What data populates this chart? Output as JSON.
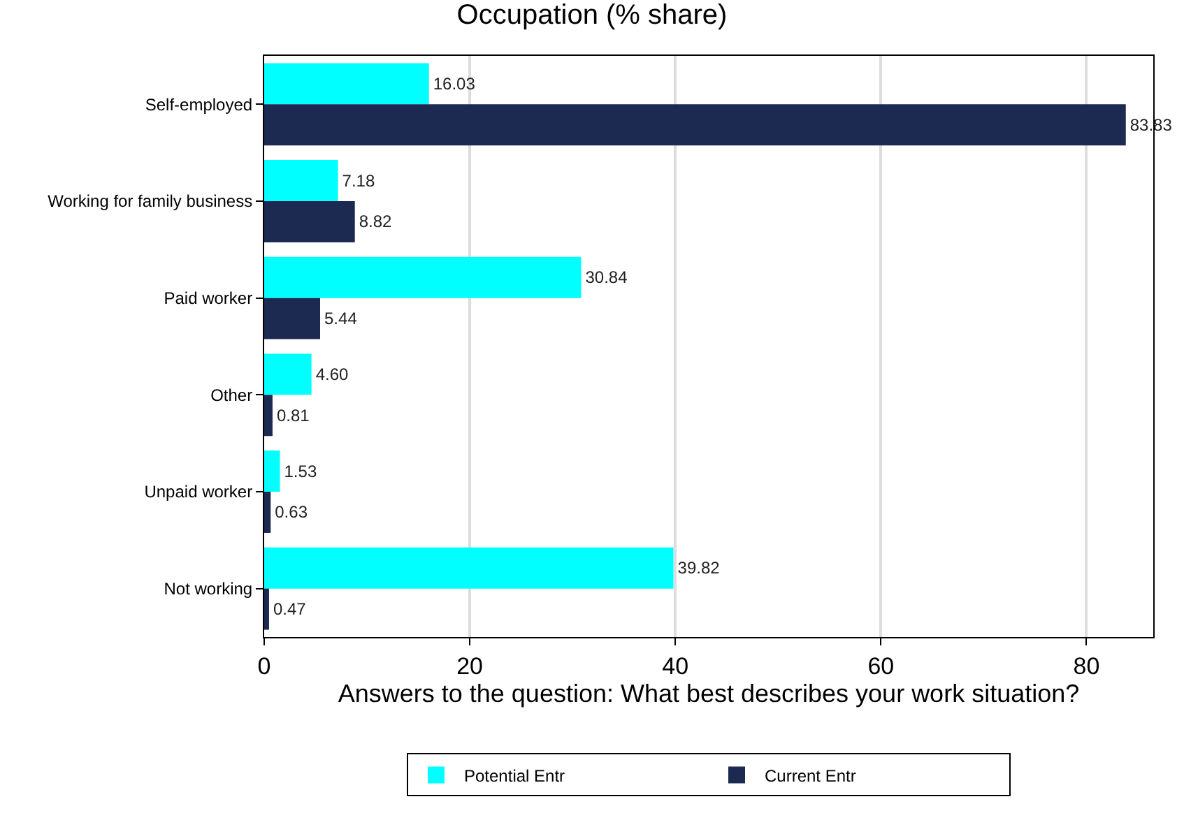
{
  "chart_data": {
    "type": "bar",
    "orientation": "horizontal",
    "title": "Occupation (% share)",
    "xlabel": "Answers to the question: What best describes your work situation?",
    "categories": [
      "Self-employed",
      "Working for family business",
      "Paid worker",
      "Other",
      "Unpaid worker",
      "Not working"
    ],
    "series": [
      {
        "name": "Potential Entr",
        "color": "#00ffff",
        "values": [
          16.03,
          7.18,
          30.84,
          4.6,
          1.53,
          39.82
        ],
        "value_labels": [
          "16.03",
          "7.18",
          "30.84",
          "4.60",
          "1.53",
          "39.82"
        ]
      },
      {
        "name": "Current Entr",
        "color": "#1c2951",
        "values": [
          83.83,
          8.82,
          5.44,
          0.81,
          0.63,
          0.47
        ],
        "value_labels": [
          "83.83",
          "8.82",
          "5.44",
          "0.81",
          "0.63",
          "0.47"
        ]
      }
    ],
    "xlim": [
      0,
      86.5
    ],
    "xticks": [
      0,
      20,
      40,
      60,
      80
    ],
    "grid": "x",
    "legend": "bottom"
  }
}
